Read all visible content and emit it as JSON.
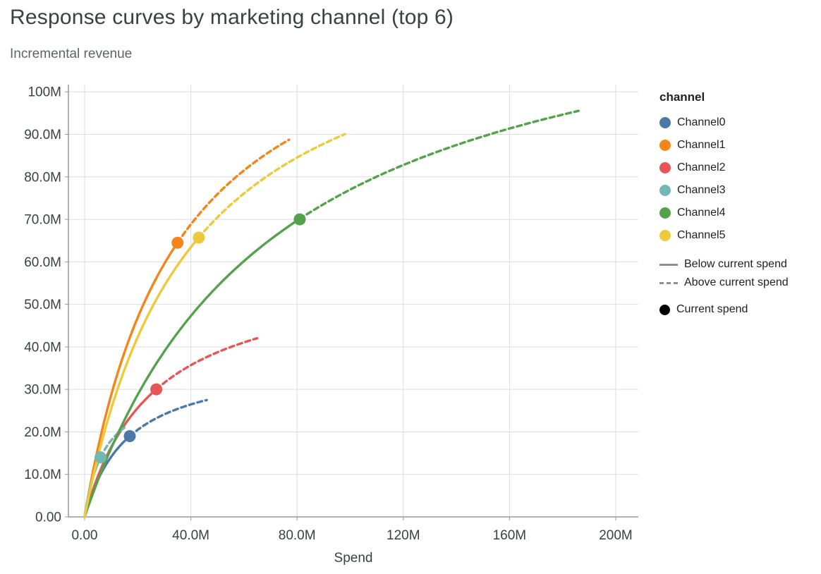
{
  "chart_data": {
    "type": "line",
    "title": "Response curves by marketing channel (top 6)",
    "subtitle": "Incremental revenue",
    "xlabel": "Spend",
    "ylabel": "Incremental revenue",
    "units": "millions",
    "x_tick_labels": [
      "0.00",
      "40.0M",
      "80.0M",
      "120M",
      "160M",
      "200M"
    ],
    "x_tick_values": [
      0,
      40,
      80,
      120,
      160,
      200
    ],
    "y_tick_labels": [
      "0.00",
      "10.0M",
      "20.0M",
      "30.0M",
      "40.0M",
      "50.0M",
      "60.0M",
      "70.0M",
      "80.0M",
      "90.0M",
      "100M"
    ],
    "y_tick_values": [
      0,
      10,
      20,
      30,
      40,
      50,
      60,
      70,
      80,
      90,
      100
    ],
    "xlim": [
      -6.1,
      208.5
    ],
    "ylim": [
      0,
      101.7
    ],
    "grid": true,
    "curve_model": "y = ymax * x / (x + k), spend and revenue in millions",
    "series": [
      {
        "name": "Channel0",
        "color": "#4c78a8",
        "k": 16.4,
        "ymax": 37.3,
        "current_spend": 17,
        "current_revenue": 19.0,
        "max_spend": 46,
        "max_revenue": 27.5
      },
      {
        "name": "Channel1",
        "color": "#f58518",
        "k": 35.1,
        "ymax": 129.2,
        "current_spend": 35,
        "current_revenue": 64.5,
        "max_spend": 77,
        "max_revenue": 88.5
      },
      {
        "name": "Channel2",
        "color": "#e45756",
        "k": 25.8,
        "ymax": 58.7,
        "current_spend": 27,
        "current_revenue": 30.0,
        "max_spend": 65,
        "max_revenue": 42.0
      },
      {
        "name": "Channel3",
        "color": "#72b7b2",
        "k": 7.5,
        "ymax": 31.5,
        "current_spend": 6,
        "current_revenue": 14.0,
        "max_spend": 15,
        "max_revenue": 21.0
      },
      {
        "name": "Channel4",
        "color": "#54a24b",
        "k": 72.2,
        "ymax": 132.6,
        "current_spend": 81,
        "current_revenue": 70.0,
        "max_spend": 186,
        "max_revenue": 95.5
      },
      {
        "name": "Channel5",
        "color": "#eeca3b",
        "k": 39.9,
        "ymax": 126.7,
        "current_spend": 43,
        "current_revenue": 65.7,
        "max_spend": 98,
        "max_revenue": 90.0
      }
    ],
    "legend": {
      "title": "channel",
      "below_label": "Below current spend",
      "above_label": "Above current spend",
      "current_label": "Current spend",
      "line_swatch_color": "#8f8f8f",
      "point_swatch_color": "#000000"
    },
    "legend_position": "right",
    "colors": {
      "grid": "#dddddd",
      "axis": "#999999",
      "tick_text": "#3c4043",
      "title_text": "#3c4043",
      "subtitle_text": "#5f6368"
    }
  }
}
